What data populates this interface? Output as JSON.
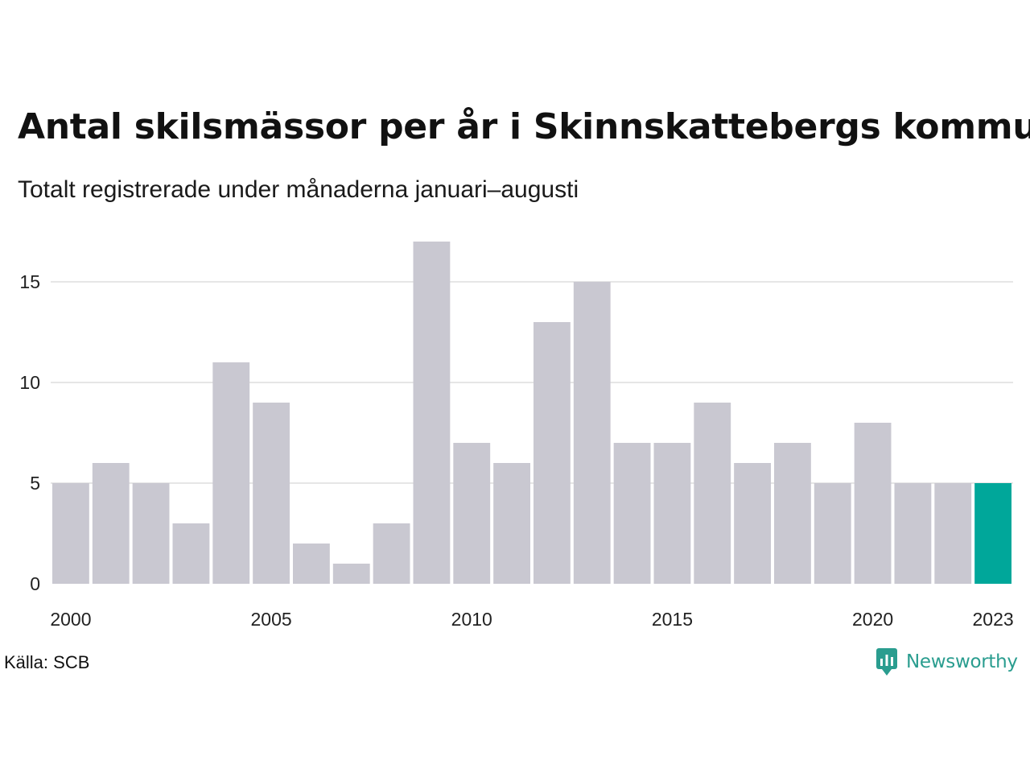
{
  "title": "Antal skilsmässor per år i Skinnskattebergs kommun",
  "subtitle": "Totalt registrerade under månaderna januari–augusti",
  "source": "Källa: SCB",
  "logo_text": "Newsworthy",
  "colors": {
    "bar": "#c9c8d1",
    "highlight": "#00a79a",
    "grid": "#e6e6e6",
    "logo": "#2a9d8f"
  },
  "chart_data": {
    "type": "bar",
    "title": "Antal skilsmässor per år i Skinnskattebergs kommun",
    "subtitle": "Totalt registrerade under månaderna januari–augusti",
    "categories": [
      2000,
      2001,
      2002,
      2003,
      2004,
      2005,
      2006,
      2007,
      2008,
      2009,
      2010,
      2011,
      2012,
      2013,
      2014,
      2015,
      2016,
      2017,
      2018,
      2019,
      2020,
      2021,
      2022,
      2023
    ],
    "values": [
      5,
      6,
      5,
      3,
      11,
      9,
      2,
      1,
      3,
      17,
      7,
      6,
      13,
      15,
      7,
      7,
      9,
      6,
      7,
      5,
      8,
      5,
      5,
      5
    ],
    "highlight_category": 2023,
    "x_tick_labels": [
      "2000",
      "2005",
      "2010",
      "2015",
      "2020",
      "2023"
    ],
    "y_ticks": [
      0,
      5,
      10,
      15
    ],
    "ylim": [
      0,
      17
    ],
    "grid": "horizontal",
    "legend": "none"
  }
}
